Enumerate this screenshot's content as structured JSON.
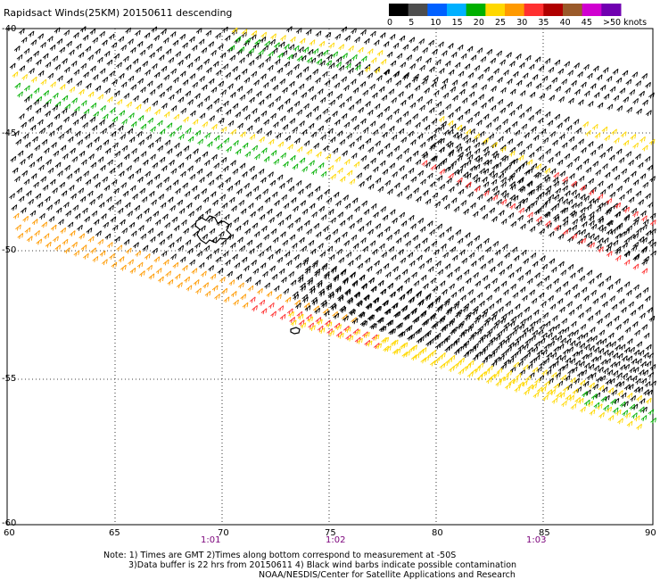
{
  "title": "Rapidsact Winds(25KM) 20150611 descending",
  "legend": {
    "labels": [
      "0",
      "5",
      "10",
      "15",
      "20",
      "25",
      "30",
      "35",
      "40",
      "45",
      ">50 knots"
    ],
    "colors": [
      "#000000",
      "#4d4d4d",
      "#0060ff",
      "#00b0ff",
      "#00b000",
      "#ffd800",
      "#ff9a00",
      "#ff3030",
      "#b00000",
      "#9a5a2a",
      "#d000d0",
      "#7000b0"
    ]
  },
  "axes": {
    "lat_labels": [
      "-45",
      "-50",
      "-55",
      "-60"
    ],
    "lat_top": "-40",
    "lon_labels": [
      "60",
      "65",
      "70",
      "75",
      "80",
      "85",
      "90"
    ],
    "time_labels": [
      "1:01",
      "1:02",
      "1:03"
    ]
  },
  "notes": [
    "Note: 1) Times are GMT 2)Times along bottom correspond to measurement at -50S",
    "3)Data buffer is 22 hrs from 20150611 4) Black wind barbs indicate possible contamination",
    "NOAA/NESDIS/Center for Satellite Applications and Research"
  ],
  "swaths": [
    {
      "label": "upper-left swath",
      "edge_colors": [
        "#00b000",
        "#ffd800",
        "#ff9a00"
      ]
    },
    {
      "label": "middle swath",
      "edge_colors": [
        "#ff9a00",
        "#ff3030",
        "#b00000"
      ]
    },
    {
      "label": "lower swath",
      "edge_colors": [
        "#ffd800",
        "#ff9a00",
        "#00b000"
      ]
    }
  ]
}
